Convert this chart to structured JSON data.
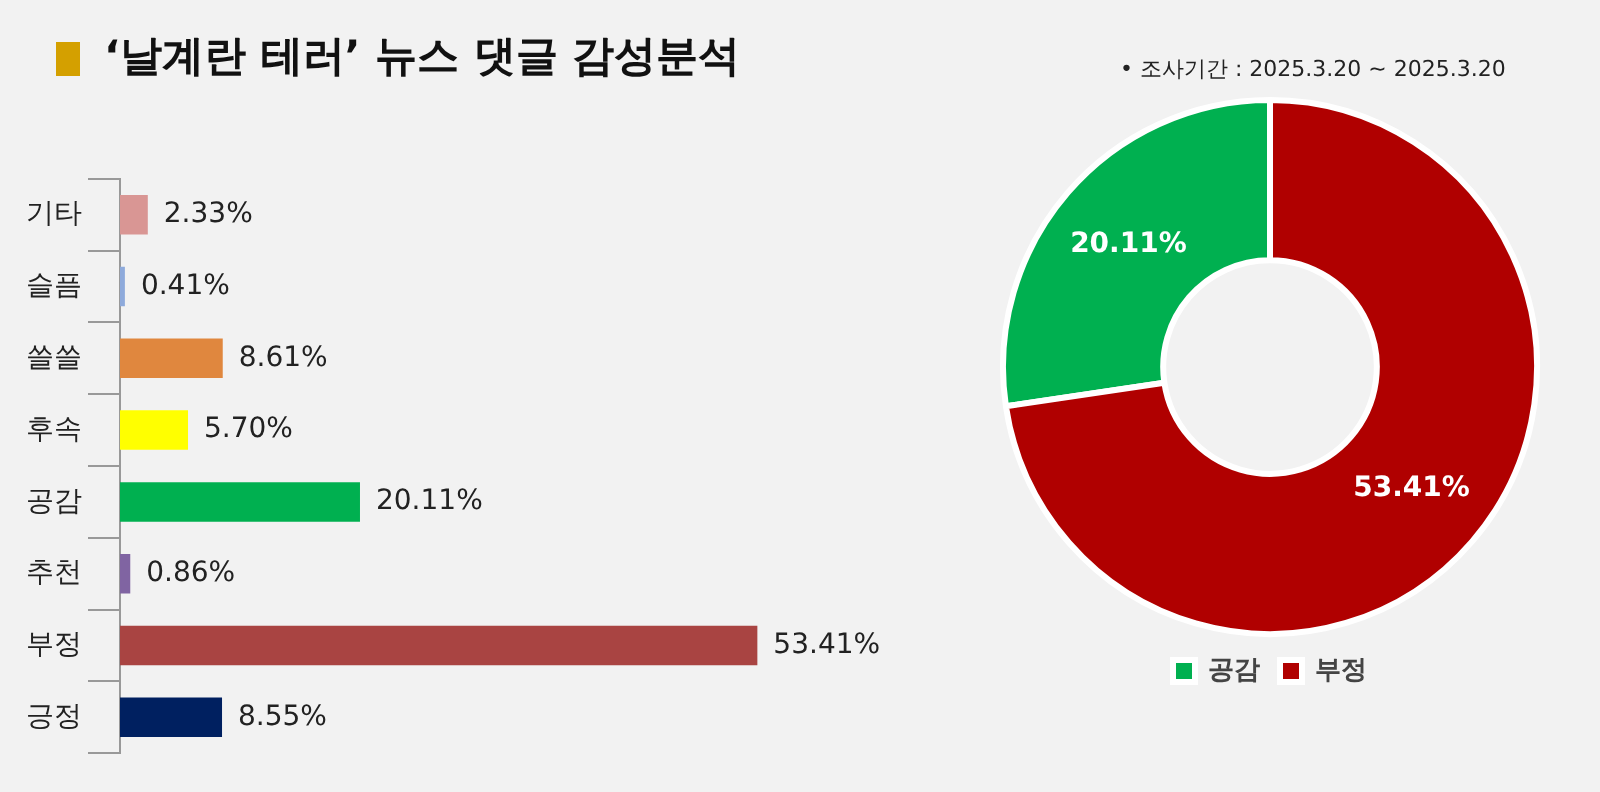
{
  "chart_data": [
    {
      "type": "bar",
      "orientation": "horizontal",
      "title": "‘날계란 테러’ 뉴스 댓글 감성분석",
      "annotations": [
        "• 조사기간 : 2025.3.20 ~ 2025.3.20"
      ],
      "categories": [
        "기타",
        "슬픔",
        "쓸쓸",
        "후속",
        "공감",
        "추천",
        "부정",
        "긍정"
      ],
      "values": [
        2.33,
        0.41,
        8.61,
        5.7,
        20.11,
        0.86,
        53.41,
        8.55
      ],
      "colors": [
        "#d99694",
        "#8eaadb",
        "#e0873e",
        "#ffff00",
        "#00b050",
        "#8064a2",
        "#a94442",
        "#002060"
      ],
      "value_labels": [
        "2.33%",
        "0.41%",
        "8.61%",
        "5.70%",
        "20.11%",
        "0.86%",
        "53.41%",
        "8.55%"
      ],
      "legend": false
    },
    {
      "type": "donut",
      "categories": [
        "공감",
        "부정"
      ],
      "values": [
        20.11,
        53.41
      ],
      "colors": [
        "#00b050",
        "#b00000"
      ],
      "value_labels": [
        "20.11%",
        "53.41%"
      ],
      "legend": "bottom"
    }
  ]
}
